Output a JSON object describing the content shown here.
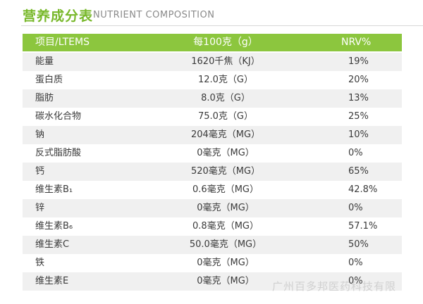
{
  "header": {
    "title": "营养成分表",
    "subtitle": "NUTRIENT COMPOSITION"
  },
  "table": {
    "columns": [
      "项目/LTEMS",
      "每100克（g）",
      "NRV%"
    ],
    "rows": [
      [
        "能量",
        "1620千焦（KJ）",
        "19%"
      ],
      [
        "蛋白质",
        "12.0克（G）",
        "20%"
      ],
      [
        "脂肪",
        "8.0克（G）",
        "13%"
      ],
      [
        "碳水化合物",
        "75.0克（G）",
        "25%"
      ],
      [
        "钠",
        "204毫克（MG）",
        "10%"
      ],
      [
        "反式脂肪酸",
        "0毫克（MG）",
        "0%"
      ],
      [
        "钙",
        "520毫克（MG）",
        "65%"
      ],
      [
        "维生素B₁",
        "0.6毫克（MG）",
        "42.8%"
      ],
      [
        "锌",
        "0毫克（MG）",
        "0%"
      ],
      [
        "维生素B₆",
        "0.8毫克（MG）",
        "57.1%"
      ],
      [
        "维生素C",
        "50.0毫克（MG）",
        "50%"
      ],
      [
        "铁",
        "0毫克（MG）",
        "0%"
      ],
      [
        "维生素E",
        "0毫克（MG）",
        "0%"
      ]
    ]
  },
  "watermark": "广州百多邦医药科技有限"
}
